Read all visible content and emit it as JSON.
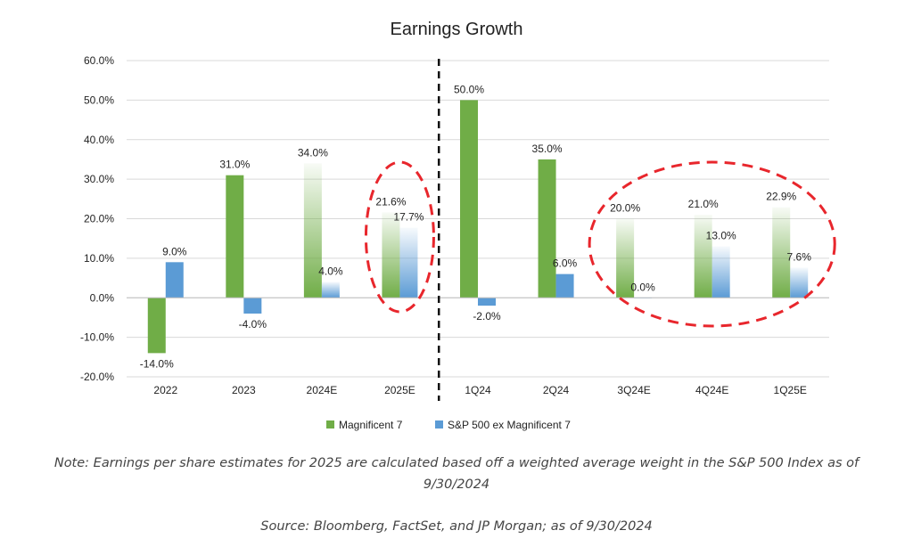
{
  "chart_data": {
    "type": "bar",
    "title": "Earnings Growth",
    "categories": [
      "2022",
      "2023",
      "2024E",
      "2025E",
      "1Q24",
      "2Q24",
      "3Q24E",
      "4Q24E",
      "1Q25E"
    ],
    "estimated_categories": [
      "2024E",
      "2025E",
      "3Q24E",
      "4Q24E",
      "1Q25E"
    ],
    "series": [
      {
        "name": "Magnificent 7",
        "color": "#70ad47",
        "values": [
          -14.0,
          31.0,
          34.0,
          21.6,
          50.0,
          35.0,
          20.0,
          21.0,
          22.9
        ],
        "labels": [
          "-14.0%",
          "31.0%",
          "34.0%",
          "21.6%",
          "50.0%",
          "35.0%",
          "20.0%",
          "21.0%",
          "22.9%"
        ]
      },
      {
        "name": "S&P 500 ex Magnificent 7",
        "color": "#5b9bd5",
        "values": [
          9.0,
          -4.0,
          4.0,
          17.7,
          -2.0,
          6.0,
          0.0,
          13.0,
          7.6
        ],
        "labels": [
          "9.0%",
          "-4.0%",
          "4.0%",
          "17.7%",
          "-2.0%",
          "6.0%",
          "0.0%",
          "13.0%",
          "7.6%"
        ]
      }
    ],
    "y_ticks": [
      60,
      50,
      40,
      30,
      20,
      10,
      0,
      -10,
      -20
    ],
    "y_tick_labels": [
      "60.0%",
      "50.0%",
      "40.0%",
      "30.0%",
      "20.0%",
      "10.0%",
      "0.0%",
      "-10.0%",
      "-20.0%"
    ],
    "ylim": [
      -20,
      60
    ],
    "grid": true,
    "legend_position": "bottom",
    "annotations": {
      "divider_between": [
        "2025E",
        "1Q24"
      ],
      "highlight_groups": [
        [
          "2025E"
        ],
        [
          "3Q24E",
          "4Q24E",
          "1Q25E"
        ]
      ],
      "highlight_color": "#e8262c"
    }
  },
  "note": "Note: Earnings per share estimates for 2025 are calculated based off a weighted average weight in the S&P 500 Index as of 9/30/2024",
  "source": "Source: Bloomberg, FactSet, and JP Morgan; as of 9/30/2024"
}
